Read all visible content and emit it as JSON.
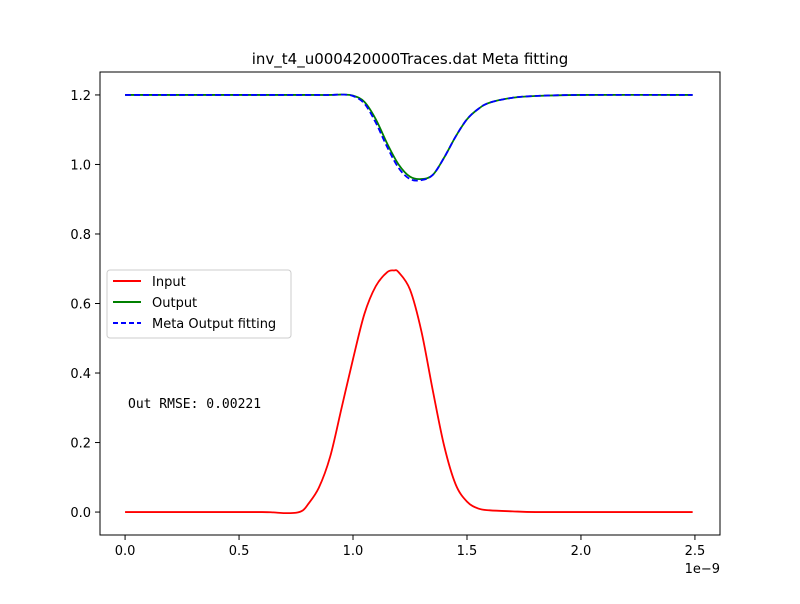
{
  "chart_data": {
    "type": "line",
    "title": "inv_t4_u000420000Traces.dat Meta fitting",
    "xlabel": "",
    "ylabel": "",
    "x_offset_text": "1e−9",
    "xlim": [
      -0.11,
      2.61
    ],
    "ylim": [
      -0.066,
      1.266
    ],
    "x_ticks": [
      0.0,
      0.5,
      1.0,
      1.5,
      2.0,
      2.5
    ],
    "x_tick_labels": [
      "0.0",
      "0.5",
      "1.0",
      "1.5",
      "2.0",
      "2.5"
    ],
    "y_ticks": [
      0.0,
      0.2,
      0.4,
      0.6,
      0.8,
      1.0,
      1.2
    ],
    "y_tick_labels": [
      "0.0",
      "0.2",
      "0.4",
      "0.6",
      "0.8",
      "1.0",
      "1.2"
    ],
    "grid": false,
    "legend_position": "center-left",
    "annotation": "Out RMSE: 0.00221",
    "series": [
      {
        "name": "Input",
        "color": "#ff0000",
        "style": "solid",
        "x": [
          0.0,
          0.2,
          0.4,
          0.6,
          0.65,
          0.7,
          0.75,
          0.78,
          0.8,
          0.85,
          0.9,
          0.95,
          1.0,
          1.05,
          1.1,
          1.15,
          1.18,
          1.2,
          1.25,
          1.3,
          1.35,
          1.4,
          1.45,
          1.5,
          1.55,
          1.6,
          1.7,
          1.8,
          2.0,
          2.2,
          2.49
        ],
        "y": [
          0.0,
          0.0,
          0.0,
          0.0,
          -0.001,
          -0.003,
          -0.002,
          0.005,
          0.02,
          0.07,
          0.16,
          0.3,
          0.44,
          0.57,
          0.65,
          0.69,
          0.695,
          0.69,
          0.64,
          0.52,
          0.35,
          0.19,
          0.08,
          0.03,
          0.01,
          0.005,
          0.002,
          0.0,
          0.0,
          0.0,
          0.0
        ]
      },
      {
        "name": "Output",
        "color": "#008000",
        "style": "solid",
        "x": [
          0.0,
          0.5,
          0.8,
          0.9,
          0.95,
          1.0,
          1.05,
          1.1,
          1.15,
          1.2,
          1.25,
          1.3,
          1.35,
          1.4,
          1.45,
          1.5,
          1.55,
          1.6,
          1.7,
          1.8,
          2.0,
          2.49
        ],
        "y": [
          1.2,
          1.2,
          1.2,
          1.2,
          1.201,
          1.198,
          1.18,
          1.13,
          1.06,
          1.0,
          0.965,
          0.958,
          0.97,
          1.02,
          1.08,
          1.13,
          1.16,
          1.178,
          1.192,
          1.197,
          1.2,
          1.2
        ]
      },
      {
        "name": "Meta Output fitting",
        "color": "#0000ff",
        "style": "dashed",
        "x": [
          0.0,
          0.5,
          0.8,
          0.9,
          0.95,
          1.0,
          1.05,
          1.1,
          1.15,
          1.2,
          1.25,
          1.3,
          1.35,
          1.4,
          1.45,
          1.5,
          1.55,
          1.6,
          1.7,
          1.8,
          2.0,
          2.49
        ],
        "y": [
          1.2,
          1.2,
          1.2,
          1.2,
          1.201,
          1.197,
          1.175,
          1.12,
          1.05,
          0.99,
          0.958,
          0.955,
          0.97,
          1.02,
          1.08,
          1.13,
          1.16,
          1.178,
          1.192,
          1.197,
          1.2,
          1.2
        ]
      }
    ]
  }
}
